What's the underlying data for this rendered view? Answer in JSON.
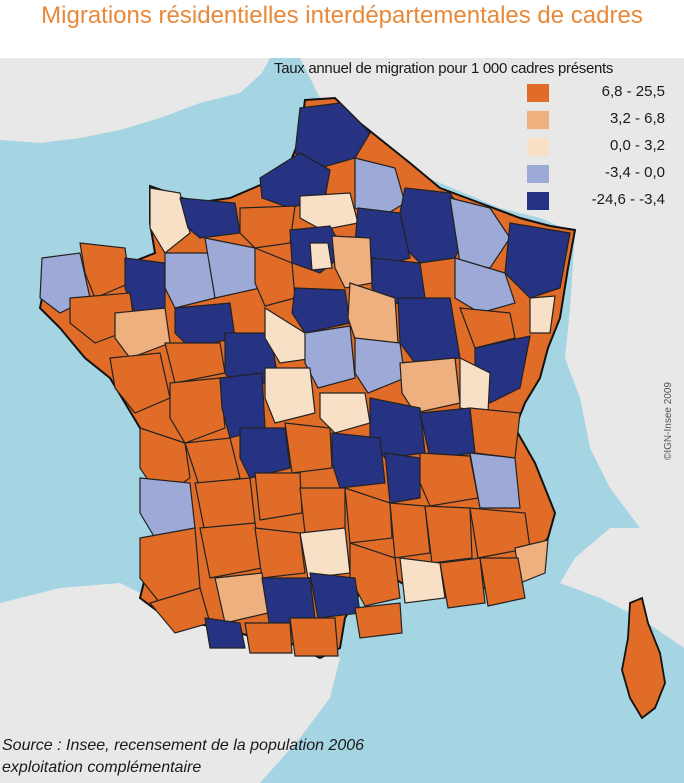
{
  "title": "Migrations résidentielles interdépartementales de cadres",
  "legend": {
    "title": "Taux annuel de migration pour 1 000 cadres présents",
    "items": [
      {
        "label": "6,8 - 25,5",
        "color": "#e06c27"
      },
      {
        "label": "3,2 - 6,8",
        "color": "#eeb07e"
      },
      {
        "label": "0,0 - 3,2",
        "color": "#f8e0c6"
      },
      {
        "label": "-3,4 - 0,0",
        "color": "#9da9d6"
      },
      {
        "label": "-24,6 - -3,4",
        "color": "#263282"
      }
    ]
  },
  "credit": "©IGN-Insee 2009",
  "source": {
    "line1": "Source : Insee, recensement de la population 2006",
    "line2": "exploitation complémentaire"
  },
  "colors": {
    "sea": "#a5d4e2",
    "land_outside": "#e8e8e8",
    "title": "#e8893a"
  }
}
